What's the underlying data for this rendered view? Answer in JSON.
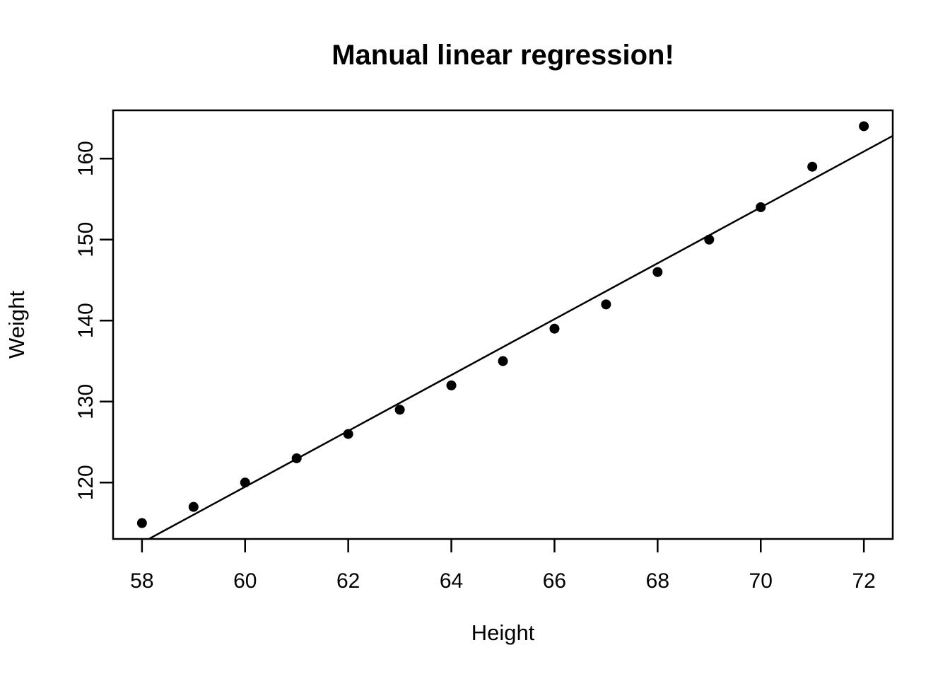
{
  "figure": {
    "background": "#FFFFFF",
    "foreground": "#000000"
  },
  "chart_data": {
    "type": "scatter",
    "title": "Manual linear regression!",
    "xlabel": "Height",
    "ylabel": "Weight",
    "x": [
      58,
      59,
      60,
      61,
      62,
      63,
      64,
      65,
      66,
      67,
      68,
      69,
      70,
      71,
      72
    ],
    "y": [
      115,
      117,
      120,
      123,
      126,
      129,
      132,
      135,
      139,
      142,
      146,
      150,
      154,
      159,
      164
    ],
    "xlim": [
      57.44,
      72.56
    ],
    "ylim": [
      113.04,
      165.96
    ],
    "x_ticks": [
      58,
      60,
      62,
      64,
      66,
      68,
      70,
      72
    ],
    "y_ticks": [
      120,
      130,
      140,
      150,
      160
    ],
    "grid": false,
    "legend": false,
    "regression_line": {
      "slope": 3.45,
      "intercept": -87.52
    },
    "marker": {
      "shape": "filled-circle",
      "color": "#000000",
      "radius_px": 7
    },
    "line_color": "#000000",
    "axis_color": "#000000"
  }
}
